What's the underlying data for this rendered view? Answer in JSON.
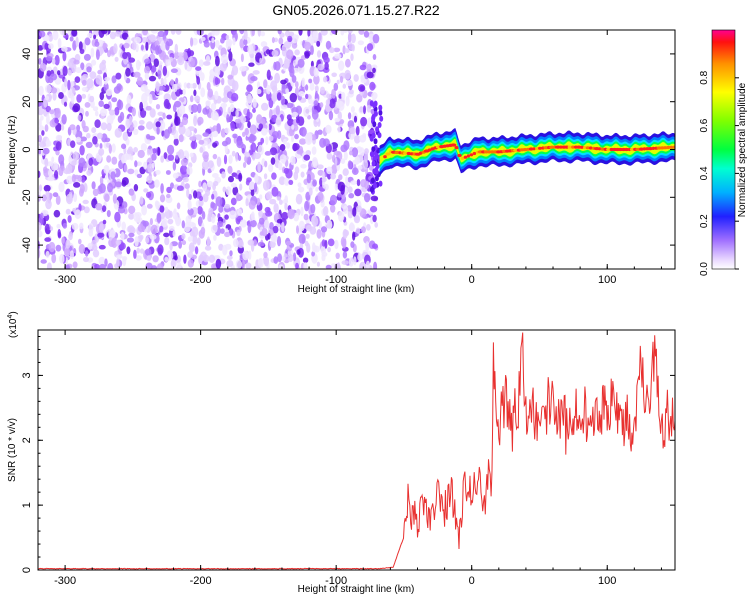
{
  "chart_data": [
    {
      "type": "heatmap",
      "title": "GN05.2026.071.15.27.R22",
      "xlabel": "Height of straight line (km)",
      "ylabel": "Frequency (Hz)",
      "xlim": [
        -320,
        150
      ],
      "ylim": [
        -50,
        50
      ],
      "x_ticks": [
        -300,
        -200,
        -100,
        0,
        100
      ],
      "y_ticks": [
        -40,
        -20,
        0,
        20,
        40
      ],
      "colorbar": {
        "label": "Normalized spectral amplitude",
        "range": [
          0,
          1
        ],
        "ticks": [
          "0.0",
          "0.2",
          "0.4",
          "0.6",
          "0.8"
        ],
        "tick_values": [
          0,
          0.2,
          0.4,
          0.6,
          0.8
        ],
        "colormap": "rainbow"
      },
      "features": {
        "noise_region_x": [
          -320,
          -68
        ],
        "ridge_x": [
          -68,
          150
        ],
        "ridge_path": [
          {
            "x": -68,
            "y": -5
          },
          {
            "x": -60,
            "y": -1
          },
          {
            "x": -40,
            "y": -2
          },
          {
            "x": -25,
            "y": 1
          },
          {
            "x": -12,
            "y": 2
          },
          {
            "x": -8,
            "y": -4
          },
          {
            "x": 5,
            "y": -1
          },
          {
            "x": 20,
            "y": -1
          },
          {
            "x": 40,
            "y": 0
          },
          {
            "x": 60,
            "y": 1
          },
          {
            "x": 80,
            "y": 1
          },
          {
            "x": 100,
            "y": 0
          },
          {
            "x": 120,
            "y": 0
          },
          {
            "x": 150,
            "y": 1
          }
        ]
      }
    },
    {
      "type": "line",
      "xlabel": "Height of straight line (km)",
      "ylabel": "SNR (10 * v/v)",
      "y_scale_label": "(x10",
      "y_scale_exp": "4",
      "y_scale_close": ")",
      "xlim": [
        -320,
        150
      ],
      "ylim": [
        0,
        3.7
      ],
      "x_ticks": [
        -300,
        -200,
        -100,
        0,
        100
      ],
      "y_ticks": [
        0,
        1,
        2,
        3
      ],
      "series": [
        {
          "color": "#e8302f",
          "x": [
            -320,
            -200,
            -100,
            -70,
            -58,
            -52,
            -48,
            -47,
            -45,
            -42,
            -40,
            -36,
            -30,
            -25,
            -20,
            -15,
            -10,
            -5,
            0,
            5,
            10,
            13,
            15,
            16,
            20,
            25,
            30,
            35,
            37,
            40,
            50,
            60,
            70,
            80,
            90,
            100,
            110,
            120,
            125,
            130,
            135,
            140,
            145,
            150
          ],
          "y": [
            0.02,
            0.02,
            0.02,
            0.02,
            0.04,
            0.4,
            0.6,
            1.6,
            0.6,
            0.9,
            0.7,
            1.0,
            0.8,
            1.2,
            0.9,
            1.3,
            0.4,
            1.4,
            1.2,
            1.5,
            1.0,
            1.6,
            1.3,
            3.3,
            2.3,
            2.6,
            2.2,
            2.7,
            3.7,
            2.5,
            2.4,
            2.6,
            2.2,
            2.5,
            2.3,
            2.6,
            2.4,
            2.2,
            3.3,
            2.4,
            3.4,
            2.1,
            2.4,
            2.3
          ]
        }
      ]
    }
  ]
}
